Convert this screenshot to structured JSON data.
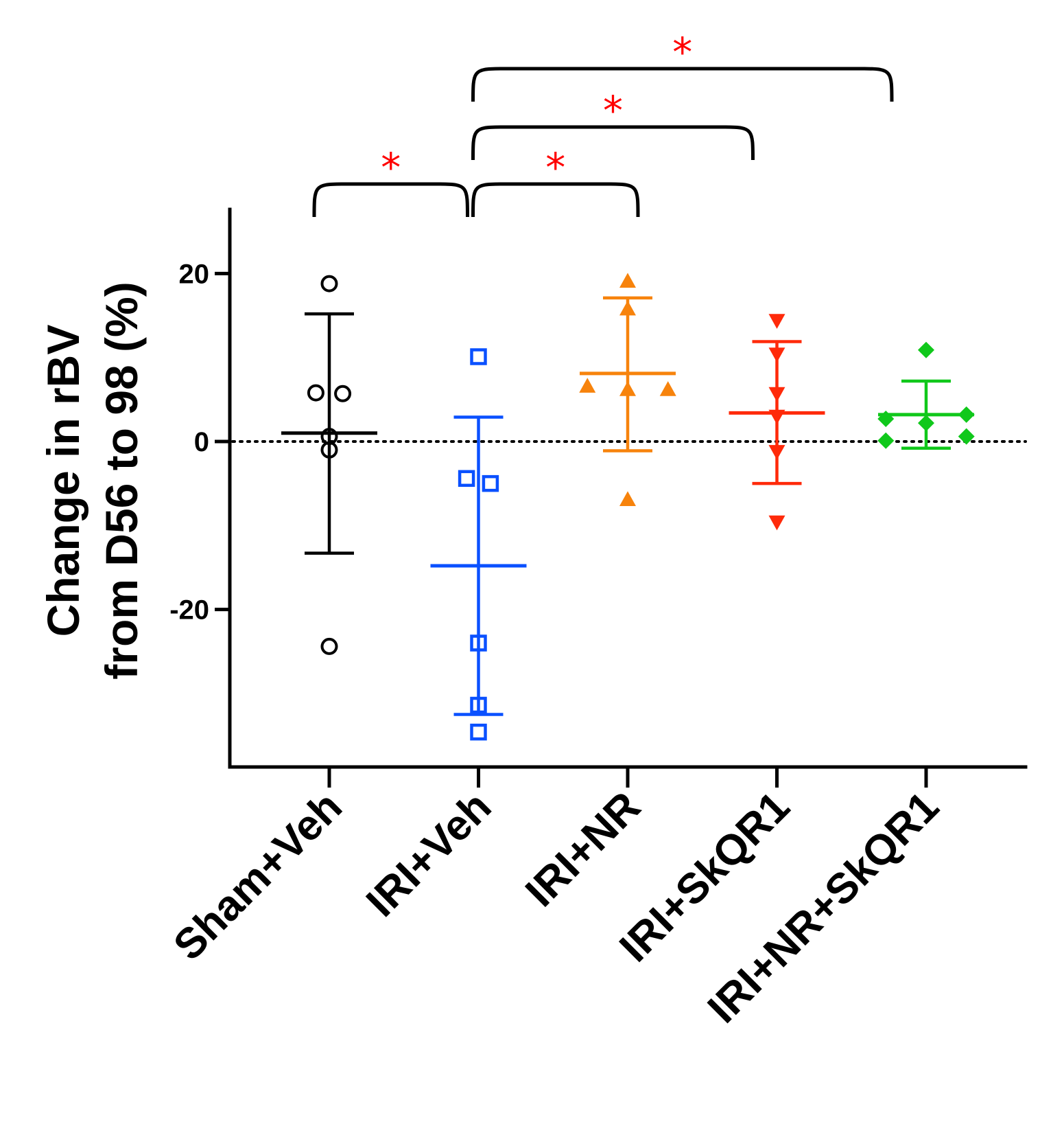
{
  "chart_data": {
    "type": "scatter",
    "title": "",
    "xlabel": "",
    "ylabel": "Change in rBV from D56 to 98 (%)",
    "ylabel_lines": [
      "Change in rBV",
      "from D56 to 98 (%)"
    ],
    "ylim": [
      -39,
      28
    ],
    "y_ticks": [
      {
        "value": 20,
        "label": "20"
      },
      {
        "value": 0,
        "label": "0"
      },
      {
        "value": -20,
        "label": "-20"
      }
    ],
    "reference_line": {
      "value": 0,
      "style": "dotted"
    },
    "categories": [
      "Sham+Veh",
      "IRI+Veh",
      "IRI+NR",
      "IRI+SkQR1",
      "IRI+NR+SkQR1"
    ],
    "series": [
      {
        "name": "Sham+Veh",
        "color": "#000000",
        "marker": "circle-open",
        "points": [
          {
            "dx": 0.0,
            "y": 18.8
          },
          {
            "dx": -0.09,
            "y": 5.8
          },
          {
            "dx": 0.09,
            "y": 5.7
          },
          {
            "dx": 0.0,
            "y": 0.6
          },
          {
            "dx": 0.0,
            "y": -1.0
          },
          {
            "dx": 0.0,
            "y": -24.4
          }
        ],
        "mean": 1.0,
        "sd_upper": 15.2,
        "sd_lower": -13.3
      },
      {
        "name": "IRI+Veh",
        "color": "#0a50ff",
        "marker": "square-open",
        "points": [
          {
            "dx": 0.0,
            "y": 10.1
          },
          {
            "dx": -0.08,
            "y": -4.4
          },
          {
            "dx": 0.08,
            "y": -5.0
          },
          {
            "dx": 0.0,
            "y": -24.0
          },
          {
            "dx": 0.0,
            "y": -31.4
          },
          {
            "dx": 0.0,
            "y": -34.6
          }
        ],
        "mean": -14.8,
        "sd_upper": 2.9,
        "sd_lower": -32.5
      },
      {
        "name": "IRI+NR",
        "color": "#f7830c",
        "marker": "triangle-up",
        "points": [
          {
            "dx": 0.0,
            "y": 19.1
          },
          {
            "dx": 0.0,
            "y": 15.8
          },
          {
            "dx": -0.27,
            "y": 6.6
          },
          {
            "dx": 0.0,
            "y": 6.2
          },
          {
            "dx": 0.27,
            "y": 6.2
          },
          {
            "dx": 0.0,
            "y": -6.9
          }
        ],
        "mean": 8.1,
        "sd_upper": 17.1,
        "sd_lower": -1.1
      },
      {
        "name": "IRI+SkQR1",
        "color": "#ff2a0a",
        "marker": "triangle-down",
        "points": [
          {
            "dx": 0.0,
            "y": 14.4
          },
          {
            "dx": 0.0,
            "y": 10.4
          },
          {
            "dx": 0.0,
            "y": 5.7
          },
          {
            "dx": 0.0,
            "y": 3.0
          },
          {
            "dx": 0.0,
            "y": -1.2
          },
          {
            "dx": 0.0,
            "y": -9.6
          }
        ],
        "mean": 3.4,
        "sd_upper": 11.9,
        "sd_lower": -5.0
      },
      {
        "name": "IRI+NR+SkQR1",
        "color": "#10c81b",
        "marker": "diamond",
        "points": [
          {
            "dx": 0.0,
            "y": 10.9
          },
          {
            "dx": -0.27,
            "y": 2.7
          },
          {
            "dx": 0.27,
            "y": 3.2
          },
          {
            "dx": 0.0,
            "y": 2.2
          },
          {
            "dx": -0.27,
            "y": 0.1
          },
          {
            "dx": 0.27,
            "y": 0.6
          }
        ],
        "mean": 3.2,
        "sd_upper": 7.2,
        "sd_lower": -0.8
      }
    ],
    "significance": [
      {
        "from": "Sham+Veh",
        "to": "IRI+Veh",
        "label": "*",
        "level": 0
      },
      {
        "from": "IRI+Veh",
        "to": "IRI+NR",
        "label": "*",
        "level": 0
      },
      {
        "from": "IRI+Veh",
        "to": "IRI+SkQR1",
        "label": "*",
        "level": 1
      },
      {
        "from": "IRI+Veh",
        "to": "IRI+NR+SkQR1",
        "label": "*",
        "level": 2
      }
    ]
  }
}
